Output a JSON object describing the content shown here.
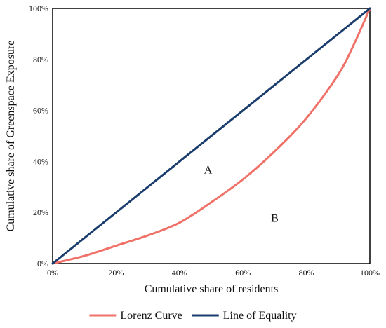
{
  "chart_data": {
    "type": "line",
    "xlabel": "Cumulative share of  residents",
    "ylabel": "Cumulative share of  Greenspace Exposure",
    "xlim": [
      0,
      100
    ],
    "ylim": [
      0,
      100
    ],
    "x_ticks": [
      "0%",
      "20%",
      "40%",
      "60%",
      "80%",
      "100%"
    ],
    "y_ticks": [
      "0%",
      "20%",
      "40%",
      "60%",
      "80%",
      "100%"
    ],
    "grid": false,
    "legend_position": "bottom",
    "series": [
      {
        "name": "Lorenz Curve",
        "color": "#f07167",
        "x": [
          0,
          10,
          20,
          30,
          40,
          50,
          60,
          70,
          80,
          90,
          95,
          100
        ],
        "y": [
          0,
          3,
          7,
          11,
          16,
          24,
          33,
          44,
          57,
          74,
          86,
          100
        ]
      },
      {
        "name": "Line of Equality",
        "color": "#1a3d6e",
        "x": [
          0,
          100
        ],
        "y": [
          0,
          100
        ]
      }
    ],
    "annotations": [
      {
        "text": "A",
        "x": 49,
        "y": 37
      },
      {
        "text": "B",
        "x": 70,
        "y": 18
      }
    ]
  }
}
